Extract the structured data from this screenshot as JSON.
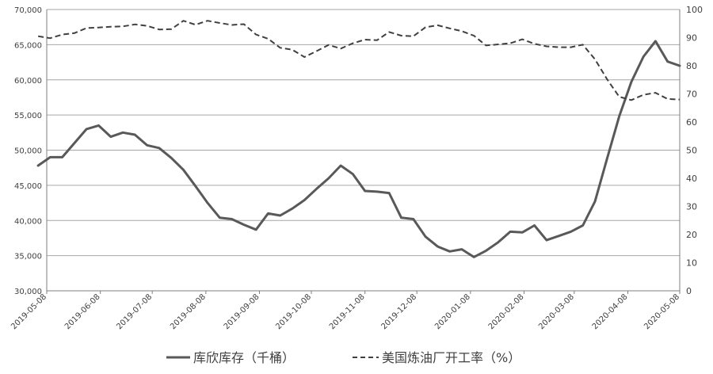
{
  "colors": {
    "inventory_line": "#595959",
    "utilization_line": "#404040",
    "gridline": "#a6a6a6",
    "axis": "#7f7f7f",
    "text": "#404040",
    "background": "#ffffff"
  },
  "chart_data": {
    "type": "line",
    "grid": true,
    "legend_position": "bottom",
    "x_tick_labels": [
      "2019-05-08",
      "2019-06-08",
      "2019-07-08",
      "2019-08-08",
      "2019-09-08",
      "2019-10-08",
      "2019-11-08",
      "2019-12-08",
      "2020-01-08",
      "2020-02-08",
      "2020-03-08",
      "2020-04-08",
      "2020-05-08"
    ],
    "y_left": {
      "ylim": [
        30000,
        70000
      ],
      "tick_labels": [
        "30,000",
        "35,000",
        "40,000",
        "45,000",
        "50,000",
        "55,000",
        "60,000",
        "65,000",
        "70,000"
      ]
    },
    "y_right": {
      "ylim": [
        0,
        100
      ],
      "tick_labels": [
        "0",
        "10",
        "20",
        "30",
        "40",
        "50",
        "60",
        "70",
        "80",
        "90",
        "100"
      ]
    },
    "series": [
      {
        "name": "库欣库存（千桶）",
        "axis": "left",
        "style": "solid",
        "x": [
          "2019-05-03",
          "2019-05-10",
          "2019-05-17",
          "2019-05-24",
          "2019-05-31",
          "2019-06-07",
          "2019-06-14",
          "2019-06-21",
          "2019-06-28",
          "2019-07-05",
          "2019-07-12",
          "2019-07-19",
          "2019-07-26",
          "2019-08-02",
          "2019-08-09",
          "2019-08-16",
          "2019-08-23",
          "2019-08-30",
          "2019-09-06",
          "2019-09-13",
          "2019-09-20",
          "2019-09-27",
          "2019-10-04",
          "2019-10-11",
          "2019-10-18",
          "2019-10-25",
          "2019-11-01",
          "2019-11-08",
          "2019-11-15",
          "2019-11-22",
          "2019-11-29",
          "2019-12-06",
          "2019-12-13",
          "2019-12-20",
          "2019-12-27",
          "2020-01-03",
          "2020-01-10",
          "2020-01-17",
          "2020-01-24",
          "2020-01-31",
          "2020-02-07",
          "2020-02-14",
          "2020-02-21",
          "2020-02-28",
          "2020-03-06",
          "2020-03-13",
          "2020-03-20",
          "2020-03-27",
          "2020-04-03",
          "2020-04-10",
          "2020-04-17",
          "2020-04-24",
          "2020-05-01",
          "2020-05-08"
        ],
        "values": [
          47800,
          49000,
          49000,
          51000,
          53000,
          53500,
          51900,
          52500,
          52200,
          50700,
          50300,
          48900,
          47200,
          44900,
          42500,
          40400,
          40200,
          39400,
          38700,
          41000,
          40700,
          41700,
          42900,
          44500,
          46000,
          47800,
          46600,
          44200,
          44100,
          43900,
          40400,
          40200,
          37700,
          36300,
          35600,
          35900,
          34800,
          35700,
          36900,
          38400,
          38300,
          39300,
          37200,
          37800,
          38400,
          39300,
          42700,
          48800,
          54800,
          59700,
          63300,
          65500,
          62600,
          62000
        ]
      },
      {
        "name": "美国炼油厂开工率（%）",
        "axis": "right",
        "style": "dashed",
        "x": [
          "2019-05-03",
          "2019-05-10",
          "2019-05-17",
          "2019-05-24",
          "2019-05-31",
          "2019-06-07",
          "2019-06-14",
          "2019-06-21",
          "2019-06-28",
          "2019-07-05",
          "2019-07-12",
          "2019-07-19",
          "2019-07-26",
          "2019-08-02",
          "2019-08-09",
          "2019-08-16",
          "2019-08-23",
          "2019-08-30",
          "2019-09-06",
          "2019-09-13",
          "2019-09-20",
          "2019-09-27",
          "2019-10-04",
          "2019-10-11",
          "2019-10-18",
          "2019-10-25",
          "2019-11-01",
          "2019-11-08",
          "2019-11-15",
          "2019-11-22",
          "2019-11-29",
          "2019-12-06",
          "2019-12-13",
          "2019-12-20",
          "2019-12-27",
          "2020-01-03",
          "2020-01-10",
          "2020-01-17",
          "2020-01-24",
          "2020-01-31",
          "2020-02-07",
          "2020-02-14",
          "2020-02-21",
          "2020-02-28",
          "2020-03-06",
          "2020-03-13",
          "2020-03-20",
          "2020-03-27",
          "2020-04-03",
          "2020-04-10",
          "2020-04-17",
          "2020-04-24",
          "2020-05-01",
          "2020-05-08"
        ],
        "values": [
          90.5,
          89.8,
          91.1,
          91.6,
          93.4,
          93.6,
          93.9,
          94.0,
          94.7,
          94.2,
          92.9,
          93.0,
          96.0,
          94.6,
          96.0,
          95.2,
          94.5,
          94.8,
          91.1,
          89.6,
          86.4,
          85.7,
          83.1,
          85.2,
          87.4,
          86.1,
          88.0,
          89.3,
          89.1,
          92.0,
          90.7,
          90.5,
          93.7,
          94.4,
          93.3,
          92.3,
          90.7,
          87.2,
          87.6,
          88.0,
          89.4,
          87.8,
          86.9,
          86.6,
          86.6,
          87.5,
          82.3,
          75.2,
          69.0,
          67.8,
          69.7,
          70.4,
          68.2,
          68.0
        ]
      }
    ]
  }
}
